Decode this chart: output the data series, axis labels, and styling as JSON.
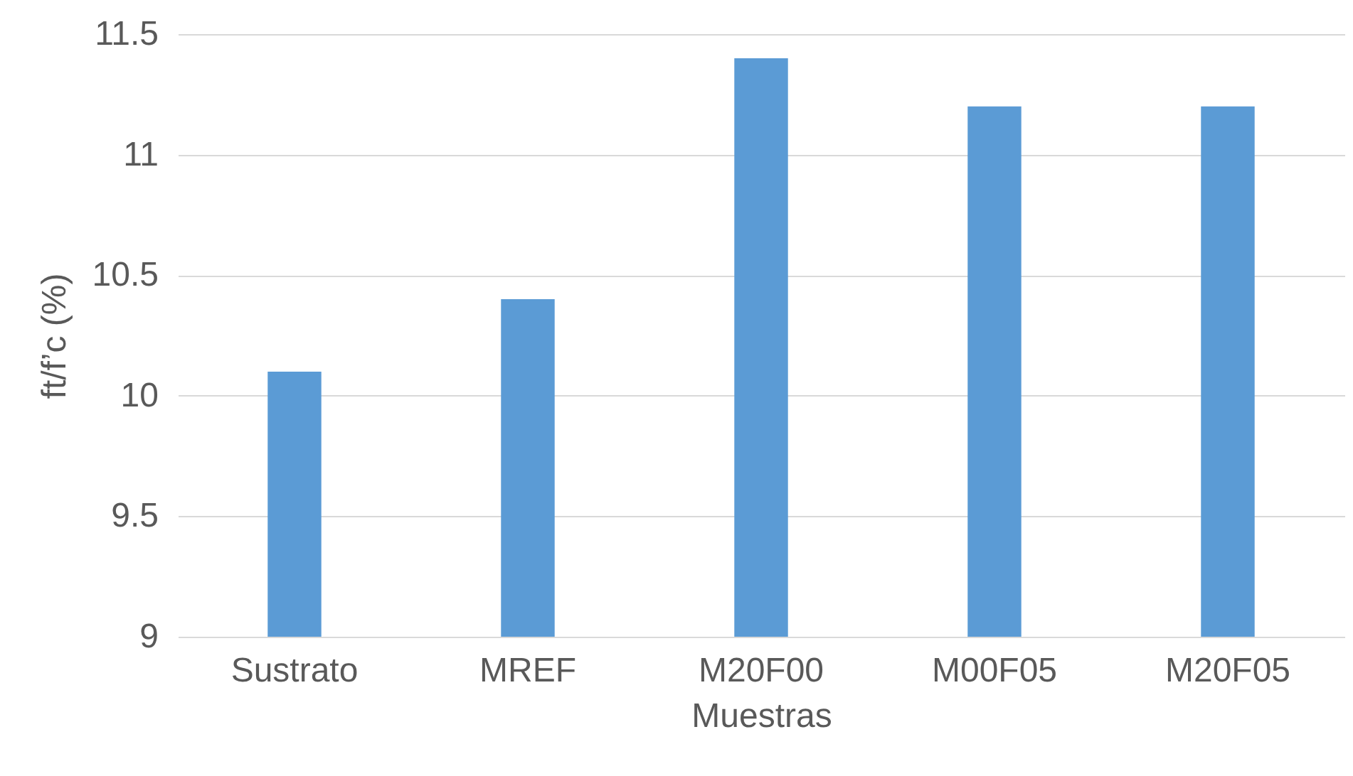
{
  "chart_data": {
    "type": "bar",
    "xlabel": "Muestras",
    "ylabel": "ft/f’c (%)",
    "categories": [
      "Sustrato",
      "MREF",
      "M20F00",
      "M00F05",
      "M20F05"
    ],
    "values": [
      10.1,
      10.4,
      11.4,
      11.2,
      11.2
    ],
    "color": "#5b9bd5",
    "ylim": [
      9,
      11.5
    ],
    "yticks": [
      9,
      9.5,
      10,
      10.5,
      11,
      11.5
    ],
    "grid": "y"
  }
}
